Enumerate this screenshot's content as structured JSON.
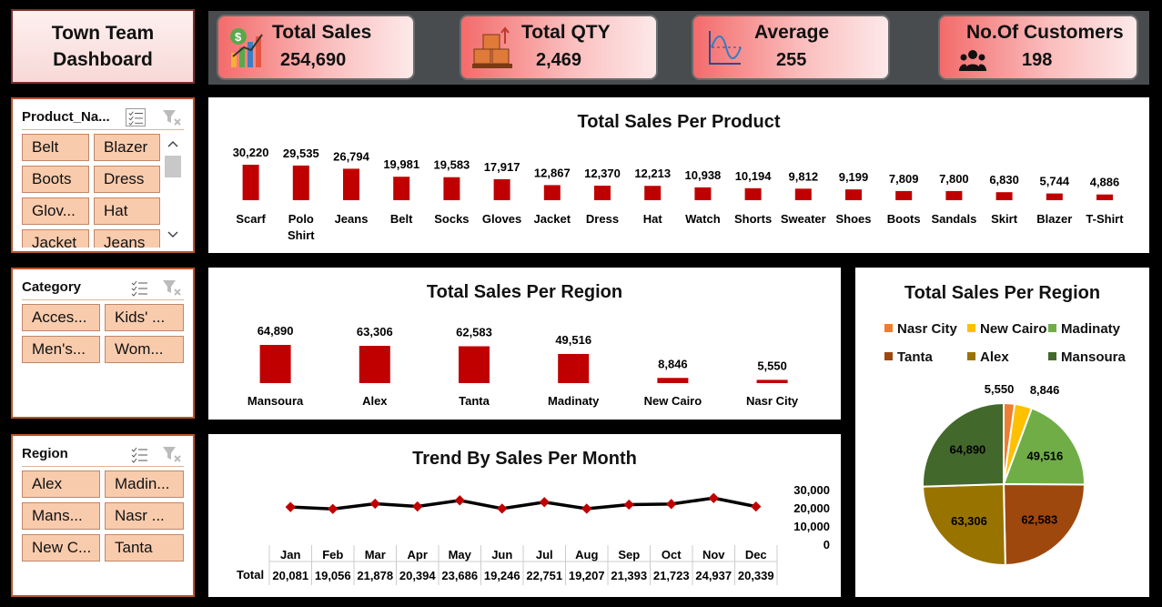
{
  "title": "Town Team\nDashboard",
  "kpis": [
    {
      "label": "Total Sales",
      "value": "254,690",
      "icon": "sales-chart-icon"
    },
    {
      "label": "Total QTY",
      "value": "2,469",
      "icon": "boxes-icon"
    },
    {
      "label": "Average",
      "value": "255",
      "icon": "wave-chart-icon"
    },
    {
      "label": "No.Of Customers",
      "value": "198",
      "icon": "people-icon"
    }
  ],
  "slicers": {
    "product": {
      "title": "Product_Na...",
      "items": [
        "Belt",
        "Blazer",
        "Boots",
        "Dress",
        "Glov...",
        "Hat",
        "Jacket",
        "Jeans"
      ]
    },
    "category": {
      "title": "Category",
      "items": [
        "Acces...",
        "Kids' ...",
        "Men's...",
        "Wom..."
      ]
    },
    "region": {
      "title": "Region",
      "items": [
        "Alex",
        "Madin...",
        "Mans...",
        "Nasr ...",
        "New C...",
        "Tanta"
      ]
    }
  },
  "colors": {
    "bar": "#c00000",
    "chip": "#f8cbad",
    "kpi": "#f36b6b"
  },
  "chart_data": [
    {
      "type": "bar",
      "title": "Total Sales Per Product",
      "categories": [
        "Scarf",
        "Polo Shirt",
        "Jeans",
        "Belt",
        "Socks",
        "Gloves",
        "Jacket",
        "Dress",
        "Hat",
        "Watch",
        "Shorts",
        "Sweater",
        "Shoes",
        "Boots",
        "Sandals",
        "Skirt",
        "Blazer",
        "T-Shirt"
      ],
      "labels": [
        "30,220",
        "29,535",
        "26,794",
        "19,981",
        "19,583",
        "17,917",
        "12,867",
        "12,370",
        "12,213",
        "10,938",
        "10,194",
        "9,812",
        "9,199",
        "7,809",
        "7,800",
        "6,830",
        "5,744",
        "4,886"
      ],
      "values": [
        30220,
        29535,
        26794,
        19981,
        19583,
        17917,
        12867,
        12370,
        12213,
        10938,
        10194,
        9812,
        9199,
        7809,
        7800,
        6830,
        5744,
        4886
      ]
    },
    {
      "type": "bar",
      "title": "Total Sales Per Region",
      "categories": [
        "Mansoura",
        "Alex",
        "Tanta",
        "Madinaty",
        "New Cairo",
        "Nasr City"
      ],
      "labels": [
        "64,890",
        "63,306",
        "62,583",
        "49,516",
        "8,846",
        "5,550"
      ],
      "values": [
        64890,
        63306,
        62583,
        49516,
        8846,
        5550
      ]
    },
    {
      "type": "line",
      "title": "Trend By Sales Per Month",
      "categories": [
        "Jan",
        "Feb",
        "Mar",
        "Apr",
        "May",
        "Jun",
        "Jul",
        "Aug",
        "Sep",
        "Oct",
        "Nov",
        "Dec"
      ],
      "series": [
        {
          "name": "Total",
          "labels": [
            "20,081",
            "19,056",
            "21,878",
            "20,394",
            "23,686",
            "19,246",
            "22,751",
            "19,207",
            "21,393",
            "21,723",
            "24,937",
            "20,339"
          ],
          "values": [
            20081,
            19056,
            21878,
            20394,
            23686,
            19246,
            22751,
            19207,
            21393,
            21723,
            24937,
            20339
          ]
        }
      ],
      "y_ticks": [
        "30,000",
        "20,000",
        "10,000",
        "0"
      ],
      "ylim": [
        0,
        30000
      ]
    },
    {
      "type": "pie",
      "title": "Total Sales Per Region",
      "categories": [
        "Nasr City",
        "New Cairo",
        "Madinaty",
        "Tanta",
        "Alex",
        "Mansoura"
      ],
      "labels": [
        "5,550",
        "8,846",
        "49,516",
        "62,583",
        "63,306",
        "64,890"
      ],
      "values": [
        5550,
        8846,
        49516,
        62583,
        63306,
        64890
      ],
      "colors": [
        "#ed7d31",
        "#ffc000",
        "#70ad47",
        "#9e480e",
        "#997300",
        "#43682b"
      ],
      "legend_position": "top"
    }
  ]
}
